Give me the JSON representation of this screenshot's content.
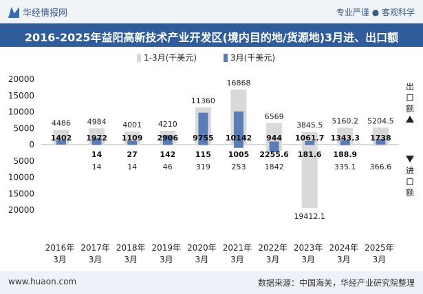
{
  "header": {
    "brand": "华经情报网",
    "slogan": "专业严谨 ● 客观科学"
  },
  "title": "2016-2025年益阳高新技术产业开发区(境内目的地/货源地)3月进、出口额",
  "footer": {
    "url": "www.huaon.com",
    "source": "数据来源：中国海关，华经产业研究院整理"
  },
  "side_labels": {
    "export": "出口额",
    "import": "进口额"
  },
  "colors": {
    "cumulative": "#d9d9d9",
    "monthly": "#5b7db6",
    "title_bg": "#2f5c9a"
  },
  "chart_data": {
    "type": "bar",
    "categories": [
      "2016年3月",
      "2017年3月",
      "2018年3月",
      "2019年3月",
      "2020年3月",
      "2021年3月",
      "2022年3月",
      "2023年3月",
      "2024年3月",
      "2025年3月"
    ],
    "category_labels": [
      [
        "2016年",
        "3月"
      ],
      [
        "2017年",
        "3月"
      ],
      [
        "2018年",
        "3月"
      ],
      [
        "2019年",
        "3月"
      ],
      [
        "2020年",
        "3月"
      ],
      [
        "2021年",
        "3月"
      ],
      [
        "2022年",
        "3月"
      ],
      [
        "2023年",
        "3月"
      ],
      [
        "2024年",
        "3月"
      ],
      [
        "2025年",
        "3月"
      ]
    ],
    "unit": "千美元",
    "series": [
      {
        "name": "1-3月(千美元)",
        "color": "#d9d9d9",
        "export": [
          4486,
          4984,
          4001,
          4210,
          11360,
          16868,
          6569,
          3845.5,
          5160.2,
          5204.5
        ],
        "import": [
          14,
          14,
          46,
          319,
          253,
          1842,
          19412.1,
          335.1,
          366.6
        ],
        "import_labels": [
          "14",
          "14",
          "46",
          "319",
          "253",
          "1842",
          "19412.1",
          "335.1",
          "366.6"
        ]
      },
      {
        "name": "3月(千美元)",
        "color": "#5b7db6",
        "export": [
          1402,
          1972,
          1109,
          2906,
          9755,
          10142,
          944,
          1061.7,
          1343.3,
          1738
        ],
        "import": [
          14,
          27,
          142,
          115,
          1005,
          2255.6,
          181.6,
          188.9
        ]
      }
    ],
    "cumulative_import_by_year": [
      null,
      14,
      14,
      46,
      319,
      253,
      1842,
      19412.1,
      335.1,
      366.6
    ],
    "monthly_import_by_year": [
      null,
      14,
      27,
      142,
      115,
      1005,
      2255.6,
      181.6,
      188.9,
      null
    ],
    "yticks": [
      "20000",
      "15000",
      "10000",
      "5000",
      "0",
      "5000",
      "10000",
      "15000",
      "20000"
    ],
    "ylim": [
      -20000,
      20000
    ],
    "legend_position": "top"
  }
}
